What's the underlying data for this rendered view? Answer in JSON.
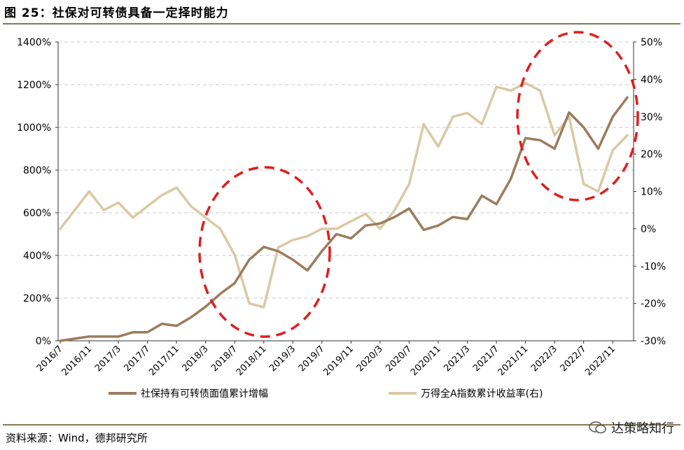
{
  "header": {
    "title": "图 25：社保对可转债具备一定择时能力"
  },
  "footer": {
    "source": "资料来源：Wind，德邦研究所",
    "watermark": "达策略知行"
  },
  "colors": {
    "series1": "#9b7c5d",
    "series2": "#d9c9a4",
    "highlight": "#e11d1d",
    "rule": "#8c7656"
  },
  "chart_data": {
    "type": "line",
    "x_tick_labels": [
      "2016/7",
      "2016/11",
      "2017/3",
      "2017/7",
      "2017/11",
      "2018/3",
      "2018/7",
      "2018/11",
      "2019/3",
      "2019/7",
      "2019/11",
      "2020/3",
      "2020/7",
      "2020/11",
      "2021/3",
      "2021/7",
      "2021/11",
      "2022/3",
      "2022/7",
      "2022/11"
    ],
    "y_left": {
      "ticks": [
        "0%",
        "200%",
        "400%",
        "600%",
        "800%",
        "1000%",
        "1200%",
        "1400%"
      ],
      "min": 0,
      "max": 1400
    },
    "y_right": {
      "ticks": [
        "-30%",
        "-20%",
        "-10%",
        "0%",
        "10%",
        "20%",
        "30%",
        "40%",
        "50%"
      ],
      "min": -30,
      "max": 50
    },
    "series": [
      {
        "name": "社保持有可转债面值累计增幅",
        "axis": "left",
        "x": [
          0,
          2,
          4,
          6,
          8,
          10,
          12,
          14,
          16,
          18,
          20,
          22,
          24,
          26,
          28,
          30,
          32,
          34,
          36,
          38,
          40,
          42,
          44,
          46,
          48,
          50,
          52,
          54,
          56,
          58,
          60,
          62,
          64,
          66,
          68,
          70,
          72,
          74,
          76,
          78
        ],
        "values": [
          0,
          10,
          20,
          20,
          20,
          40,
          40,
          80,
          70,
          110,
          160,
          220,
          270,
          380,
          440,
          420,
          380,
          330,
          420,
          500,
          480,
          540,
          550,
          580,
          620,
          520,
          540,
          580,
          570,
          680,
          640,
          760,
          950,
          940,
          900,
          1070,
          1000,
          900,
          1050,
          1140
        ]
      },
      {
        "name": "万得全A指数累计收益率(右)",
        "axis": "right",
        "x": [
          0,
          2,
          4,
          6,
          8,
          10,
          12,
          14,
          16,
          18,
          20,
          22,
          24,
          26,
          28,
          30,
          32,
          34,
          36,
          38,
          40,
          42,
          44,
          46,
          48,
          50,
          52,
          54,
          56,
          58,
          60,
          62,
          64,
          66,
          68,
          70,
          72,
          74,
          76,
          78
        ],
        "values": [
          0,
          5,
          10,
          5,
          7,
          3,
          6,
          9,
          11,
          6,
          3,
          0,
          -7,
          -20,
          -21,
          -5,
          -3,
          -2,
          0,
          0,
          2,
          4,
          0,
          5,
          12,
          28,
          22,
          30,
          31,
          28,
          38,
          37,
          39,
          37,
          25,
          30,
          12,
          10,
          21,
          25
        ]
      }
    ]
  }
}
